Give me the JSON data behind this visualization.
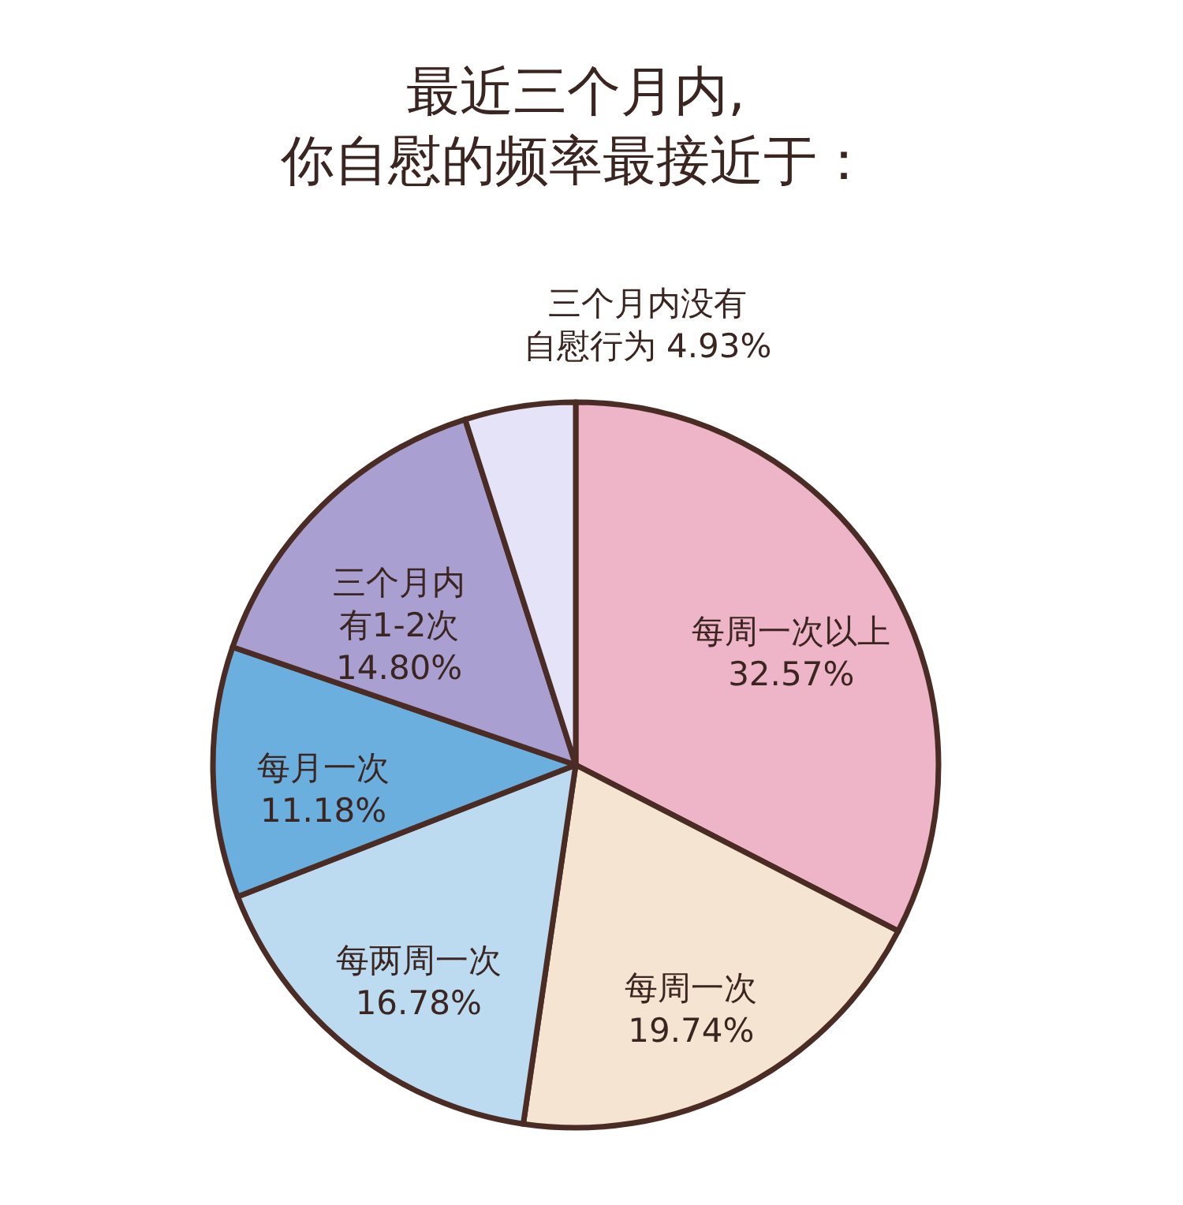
{
  "chart_data": {
    "type": "pie",
    "title": "最近三个月内,你自慰的频率最接近于：",
    "categories": [
      "每周一次以上",
      "每周一次",
      "每两周一次",
      "每月一次",
      "三个月内有1-2次",
      "三个月内没有自慰行为"
    ],
    "values": [
      32.57,
      19.74,
      16.78,
      11.18,
      14.8,
      4.93
    ],
    "value_labels": [
      "32.57%",
      "19.74%",
      "16.78%",
      "11.18%",
      "14.80%",
      "4.93%"
    ],
    "colors": [
      "#eeb4c7",
      "#f6e4d2",
      "#bcdbf1",
      "#6aafdd",
      "#a99fd1",
      "#e4e3f8"
    ],
    "legend": false
  }
}
